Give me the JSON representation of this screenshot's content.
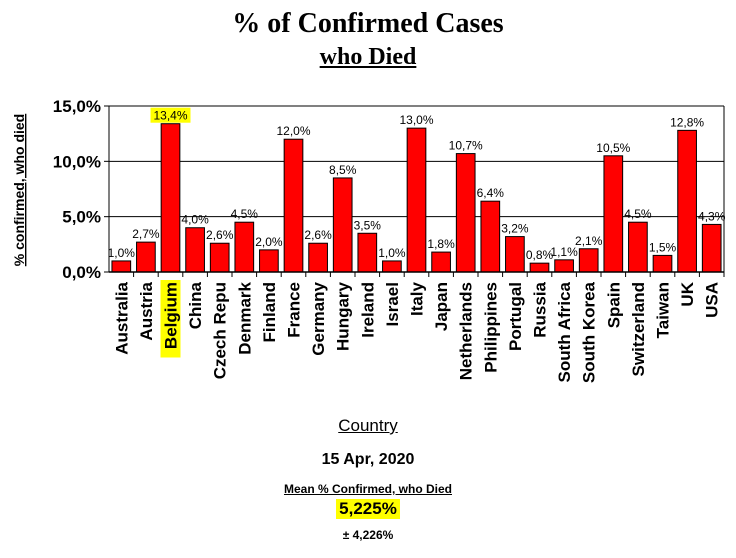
{
  "chart_data": {
    "type": "bar",
    "title": "% of Confirmed Cases",
    "subtitle": "who Died",
    "xlabel": "Country",
    "ylabel": "% confirmed, who died",
    "ylim": [
      0,
      15
    ],
    "yticks": [
      "0,0%",
      "5,0%",
      "10,0%",
      "15,0%"
    ],
    "grid": true,
    "bar_color": "#ff0000",
    "highlight_color": "#ffff00",
    "highlighted_category": "Belgium",
    "categories": [
      "Australia",
      "Austria",
      "Belgium",
      "China",
      "Czech Repu",
      "Denmark",
      "Finland",
      "France",
      "Germany",
      "Hungary",
      "Ireland",
      "Israel",
      "Italy",
      "Japan",
      "Netherlands",
      "Philippines",
      "Portugal",
      "Russia",
      "South Africa",
      "South Korea",
      "Spain",
      "Switzerland",
      "Taiwan",
      "UK",
      "USA"
    ],
    "values": [
      1.0,
      2.7,
      13.4,
      4.0,
      2.6,
      4.5,
      2.0,
      12.0,
      2.6,
      8.5,
      3.5,
      1.0,
      13.0,
      1.8,
      10.7,
      6.4,
      3.2,
      0.8,
      1.1,
      2.1,
      10.5,
      4.5,
      1.5,
      12.8,
      4.3
    ],
    "value_labels": [
      "1,0%",
      "2,7%",
      "13,4%",
      "4,0%",
      "2,6%",
      "4,5%",
      "2,0%",
      "12,0%",
      "2,6%",
      "8,5%",
      "3,5%",
      "1,0%",
      "13,0%",
      "1,8%",
      "10,7%",
      "6,4%",
      "3,2%",
      "0,8%",
      "1,1%",
      "2,1%",
      "10,5%",
      "4,5%",
      "1,5%",
      "12,8%",
      "4,3%"
    ]
  },
  "footer": {
    "date": "15 Apr, 2020",
    "mean_label": "Mean % Confirmed, who Died",
    "mean_value": "5,225%",
    "sd": "± 4,226%"
  }
}
